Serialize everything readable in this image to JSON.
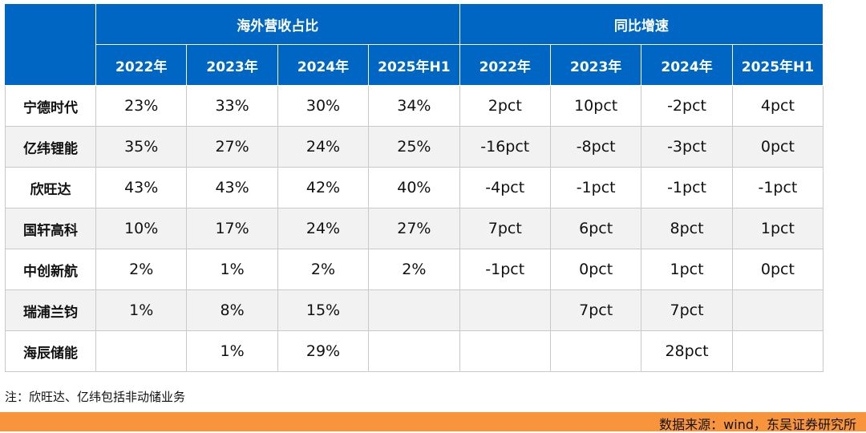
{
  "table": {
    "group_headers": [
      "海外营收占比",
      "同比增速"
    ],
    "years": [
      "2022年",
      "2023年",
      "2024年",
      "2025年H1",
      "2022年",
      "2023年",
      "2024年",
      "2025年H1"
    ],
    "rows": [
      {
        "name": "宁德时代",
        "cells": [
          "23%",
          "33%",
          "30%",
          "34%",
          "2pct",
          "10pct",
          "-2pct",
          "4pct"
        ]
      },
      {
        "name": "亿纬锂能",
        "cells": [
          "35%",
          "27%",
          "24%",
          "25%",
          "-16pct",
          "-8pct",
          "-3pct",
          "0pct"
        ]
      },
      {
        "name": "欣旺达",
        "cells": [
          "43%",
          "43%",
          "42%",
          "40%",
          "-4pct",
          "-1pct",
          "-1pct",
          "-1pct"
        ]
      },
      {
        "name": "国轩高科",
        "cells": [
          "10%",
          "17%",
          "24%",
          "27%",
          "7pct",
          "6pct",
          "8pct",
          "1pct"
        ]
      },
      {
        "name": "中创新航",
        "cells": [
          "2%",
          "1%",
          "2%",
          "2%",
          "-1pct",
          "0pct",
          "1pct",
          "0pct"
        ]
      },
      {
        "name": "瑞浦兰钧",
        "cells": [
          "1%",
          "8%",
          "15%",
          "",
          "",
          "7pct",
          "7pct",
          ""
        ]
      },
      {
        "name": "海辰储能",
        "cells": [
          "",
          "1%",
          "29%",
          "",
          "",
          "",
          "28pct",
          ""
        ]
      }
    ]
  },
  "note": "注：欣旺达、亿纬包括非动储业务",
  "source": "数据来源：wind，东吴证券研究所",
  "colors": {
    "header_bg": "#0066C4",
    "header_text": "#FFFFFF",
    "row_alt_bg": "#F2F2F2",
    "source_bar": "#F7943C"
  }
}
